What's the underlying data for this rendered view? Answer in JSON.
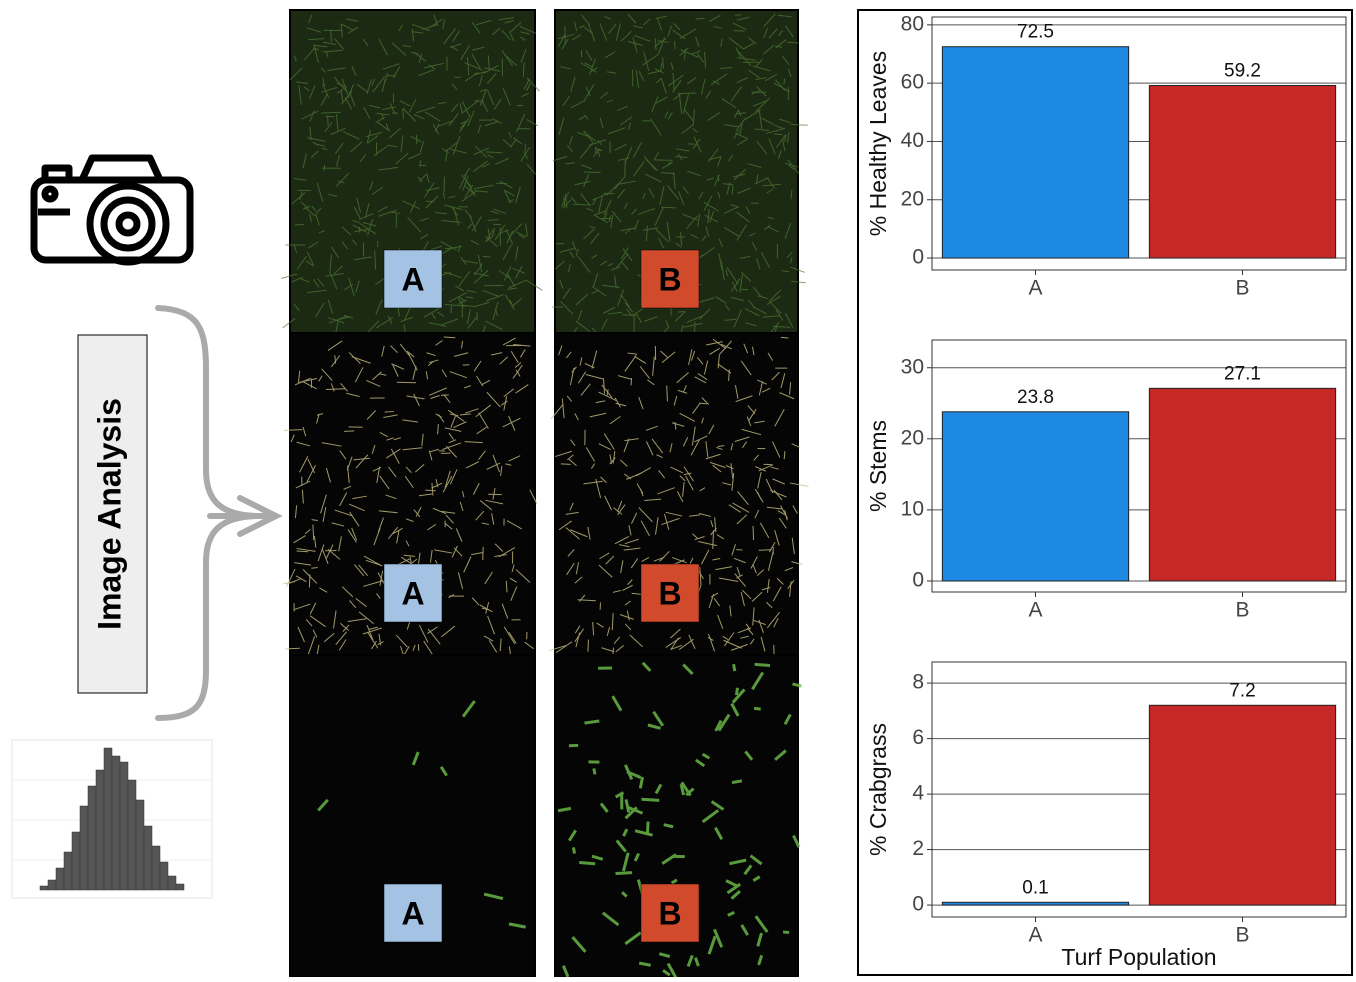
{
  "diagram": {
    "process_label": "Image Analysis",
    "panels": [
      {
        "label": "A"
      },
      {
        "label": "B"
      },
      {
        "label": "A"
      },
      {
        "label": "B"
      },
      {
        "label": "A"
      },
      {
        "label": "B"
      }
    ]
  },
  "chart_data": [
    {
      "type": "bar",
      "ylabel": "% Healthy Leaves",
      "categories": [
        "A",
        "B"
      ],
      "values": [
        72.5,
        59.2
      ],
      "colors": [
        "#1e88e5",
        "#c62828"
      ],
      "ylim": [
        -4.1,
        82.7
      ],
      "yticks": [
        0,
        20,
        40,
        60,
        80
      ],
      "grid": true
    },
    {
      "type": "bar",
      "ylabel": "% Stems",
      "categories": [
        "A",
        "B"
      ],
      "values": [
        23.8,
        27.1
      ],
      "colors": [
        "#1e88e5",
        "#c62828"
      ],
      "ylim": [
        -1.55,
        33.9
      ],
      "yticks": [
        0,
        10,
        20,
        30
      ],
      "grid": true
    },
    {
      "type": "bar",
      "ylabel": "% Crabgrass",
      "xlabel": "Turf Population",
      "categories": [
        "A",
        "B"
      ],
      "values": [
        0.1,
        7.2
      ],
      "colors": [
        "#1e88e5",
        "#c62828"
      ],
      "ylim": [
        -0.43,
        8.76
      ],
      "yticks": [
        0,
        2,
        4,
        6,
        8
      ],
      "grid": true
    }
  ]
}
